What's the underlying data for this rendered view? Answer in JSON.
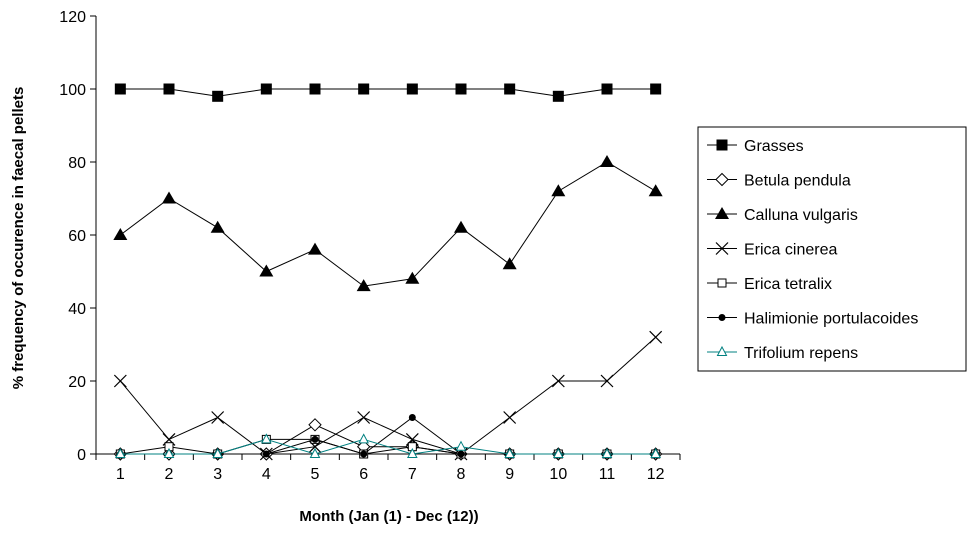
{
  "chart_data": {
    "type": "line",
    "title": "",
    "xlabel": "Month (Jan (1) - Dec (12))",
    "ylabel": "% frequency of occurence in faecal pellets",
    "x": [
      1,
      2,
      3,
      4,
      5,
      6,
      7,
      8,
      9,
      10,
      11,
      12
    ],
    "x_tick_labels": [
      "1",
      "2",
      "3",
      "4",
      "5",
      "6",
      "7",
      "8",
      "9",
      "10",
      "11",
      "12"
    ],
    "ylim": [
      0,
      120
    ],
    "y_ticks": [
      0,
      20,
      40,
      60,
      80,
      100,
      120
    ],
    "y_tick_labels": [
      "0",
      "20",
      "40",
      "60",
      "80",
      "100",
      "120"
    ],
    "grid": false,
    "legend_position": "right",
    "series": [
      {
        "name": "Grasses",
        "marker": "filled-square",
        "color": "#000000",
        "values": [
          100,
          100,
          98,
          100,
          100,
          100,
          100,
          100,
          100,
          98,
          100,
          100
        ]
      },
      {
        "name": "Betula pendula",
        "marker": "open-diamond",
        "color": "#000000",
        "values": [
          0,
          0,
          0,
          0,
          8,
          2,
          2,
          0,
          0,
          0,
          0,
          0
        ]
      },
      {
        "name": "Calluna vulgaris",
        "marker": "filled-triangle",
        "color": "#000000",
        "values": [
          60,
          70,
          62,
          50,
          56,
          46,
          48,
          62,
          52,
          72,
          80,
          72
        ]
      },
      {
        "name": "Erica cinerea",
        "marker": "x",
        "color": "#000000",
        "values": [
          20,
          4,
          10,
          0,
          2,
          10,
          4,
          0,
          10,
          20,
          20,
          32
        ]
      },
      {
        "name": "Erica tetralix",
        "marker": "open-square",
        "color": "#000000",
        "values": [
          0,
          2,
          0,
          4,
          4,
          0,
          2,
          0,
          0,
          0,
          0,
          0
        ]
      },
      {
        "name": "Halimionie portulacoides",
        "marker": "filled-circle",
        "color": "#000000",
        "values": [
          0,
          0,
          0,
          0,
          4,
          0,
          10,
          0,
          0,
          0,
          0,
          0
        ]
      },
      {
        "name": "Trifolium repens",
        "marker": "open-triangle",
        "color": "#008080",
        "values": [
          0,
          0,
          0,
          4,
          0,
          4,
          0,
          2,
          0,
          0,
          0,
          0
        ]
      }
    ]
  }
}
